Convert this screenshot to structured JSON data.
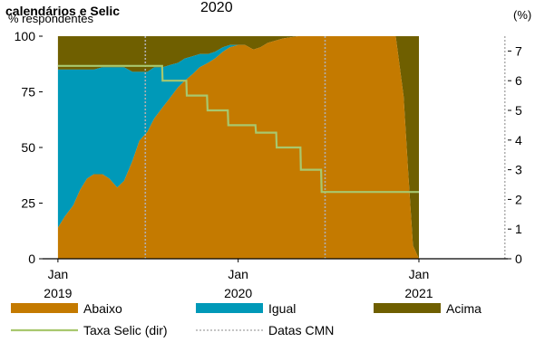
{
  "chart_data": {
    "type": "area",
    "title": "calendários e Selic",
    "title_sub": "2020",
    "left_axis": {
      "label": "% respondentes",
      "ylim": [
        0,
        100
      ],
      "ticks": [
        0,
        25,
        50,
        75,
        100
      ]
    },
    "right_axis": {
      "label": "(%)",
      "ylim": [
        0,
        7.5
      ],
      "ticks": [
        0,
        1,
        2,
        3,
        4,
        5,
        6,
        7
      ]
    },
    "x_axis": {
      "range": [
        "2018-12-01",
        "2021-06-30"
      ],
      "ticks": [
        {
          "date": "2019-01-01",
          "month": "Jan",
          "year": "2019"
        },
        {
          "date": "2020-01-01",
          "month": "Jan",
          "year": "2020"
        },
        {
          "date": "2021-01-01",
          "month": "Jan",
          "year": "2021"
        }
      ]
    },
    "colors": {
      "abaixo": "#c47a00",
      "igual": "#0099b8",
      "acima": "#6f5f00",
      "selic": "#a8c86e",
      "cmn": "#b0b0b0"
    },
    "series": [
      {
        "name": "Abaixo",
        "x": [
          "2019-01-01",
          "2019-01-15",
          "2019-02-01",
          "2019-02-15",
          "2019-03-01",
          "2019-03-15",
          "2019-04-01",
          "2019-04-15",
          "2019-05-01",
          "2019-05-15",
          "2019-06-01",
          "2019-06-15",
          "2019-07-01",
          "2019-07-15",
          "2019-08-01",
          "2019-08-15",
          "2019-09-01",
          "2019-09-15",
          "2019-10-01",
          "2019-10-15",
          "2019-11-01",
          "2019-11-15",
          "2019-12-01",
          "2019-12-15",
          "2020-01-01",
          "2020-01-15",
          "2020-02-01",
          "2020-02-15",
          "2020-03-01",
          "2020-04-01",
          "2020-05-01",
          "2020-06-01",
          "2020-07-01",
          "2020-08-01",
          "2020-09-01",
          "2020-10-01",
          "2020-11-01",
          "2020-11-15",
          "2020-12-01",
          "2020-12-10",
          "2020-12-20",
          "2021-01-01"
        ],
        "values": [
          14,
          19,
          24,
          31,
          36,
          38,
          38,
          36,
          32,
          35,
          44,
          53,
          57,
          63,
          68,
          72,
          77,
          80,
          83,
          86,
          88,
          90,
          93,
          95,
          96,
          96,
          94,
          95,
          97,
          99,
          100,
          100,
          100,
          100,
          100,
          100,
          100,
          100,
          73,
          40,
          6,
          0
        ]
      },
      {
        "name": "Igual",
        "x": [
          "2019-01-01",
          "2019-01-15",
          "2019-02-01",
          "2019-02-15",
          "2019-03-01",
          "2019-03-15",
          "2019-04-01",
          "2019-04-15",
          "2019-05-01",
          "2019-05-15",
          "2019-06-01",
          "2019-06-15",
          "2019-07-01",
          "2019-07-15",
          "2019-08-01",
          "2019-08-15",
          "2019-09-01",
          "2019-09-15",
          "2019-10-01",
          "2019-10-15",
          "2019-11-01",
          "2019-11-15",
          "2019-12-01",
          "2019-12-15",
          "2020-01-01",
          "2020-01-15",
          "2020-02-01",
          "2020-02-15",
          "2020-03-01",
          "2020-04-01",
          "2020-05-01",
          "2020-06-01",
          "2020-07-01",
          "2020-08-01",
          "2020-09-01",
          "2020-10-01",
          "2020-11-01",
          "2020-11-15",
          "2020-12-01",
          "2020-12-10",
          "2020-12-20",
          "2021-01-01"
        ],
        "values": [
          71,
          66,
          61,
          54,
          49,
          47,
          48,
          50,
          54,
          51,
          40,
          31,
          27,
          23,
          18,
          15,
          11,
          10,
          8,
          6,
          4,
          3,
          2,
          1,
          0,
          0,
          0,
          0,
          0,
          0,
          0,
          0,
          0,
          0,
          0,
          0,
          0,
          0,
          0,
          0,
          0,
          0
        ]
      },
      {
        "name": "Acima",
        "x": [
          "2019-01-01",
          "2019-01-15",
          "2019-02-01",
          "2019-02-15",
          "2019-03-01",
          "2019-03-15",
          "2019-04-01",
          "2019-04-15",
          "2019-05-01",
          "2019-05-15",
          "2019-06-01",
          "2019-06-15",
          "2019-07-01",
          "2019-07-15",
          "2019-08-01",
          "2019-08-15",
          "2019-09-01",
          "2019-09-15",
          "2019-10-01",
          "2019-10-15",
          "2019-11-01",
          "2019-11-15",
          "2019-12-01",
          "2019-12-15",
          "2020-01-01",
          "2020-01-15",
          "2020-02-01",
          "2020-02-15",
          "2020-03-01",
          "2020-04-01",
          "2020-05-01",
          "2020-06-01",
          "2020-07-01",
          "2020-08-01",
          "2020-09-01",
          "2020-10-01",
          "2020-11-01",
          "2020-11-15",
          "2020-12-01",
          "2020-12-10",
          "2020-12-20",
          "2021-01-01"
        ],
        "values": [
          15,
          15,
          15,
          15,
          15,
          15,
          14,
          14,
          14,
          14,
          16,
          16,
          16,
          14,
          14,
          13,
          12,
          10,
          9,
          8,
          8,
          7,
          5,
          4,
          4,
          4,
          6,
          5,
          3,
          1,
          0,
          0,
          0,
          0,
          0,
          0,
          0,
          0,
          27,
          60,
          94,
          100
        ]
      },
      {
        "name": "Taxa Selic (dir)",
        "axis": "right",
        "x": [
          "2019-01-01",
          "2019-07-31",
          "2019-08-01",
          "2019-09-18",
          "2019-09-19",
          "2019-10-30",
          "2019-10-31",
          "2019-12-11",
          "2019-12-12",
          "2020-02-05",
          "2020-02-06",
          "2020-03-18",
          "2020-03-19",
          "2020-05-06",
          "2020-05-07",
          "2020-06-17",
          "2020-06-18",
          "2021-01-01"
        ],
        "values": [
          6.5,
          6.5,
          6.0,
          6.0,
          5.5,
          5.5,
          5.0,
          5.0,
          4.5,
          4.5,
          4.25,
          4.25,
          3.75,
          3.75,
          3.0,
          3.0,
          2.25,
          2.25
        ]
      }
    ],
    "cmn_dates": [
      "2019-06-27",
      "2020-06-25",
      "2021-06-24"
    ],
    "legend": {
      "placement": "bottom",
      "items": [
        {
          "label": "Abaixo",
          "kind": "area",
          "color_key": "abaixo"
        },
        {
          "label": "Igual",
          "kind": "area",
          "color_key": "igual"
        },
        {
          "label": "Acima",
          "kind": "area",
          "color_key": "acima"
        },
        {
          "label": "Taxa Selic (dir)",
          "kind": "line",
          "color_key": "selic"
        },
        {
          "label": "Datas CMN",
          "kind": "dotted",
          "color_key": "cmn"
        }
      ]
    }
  }
}
